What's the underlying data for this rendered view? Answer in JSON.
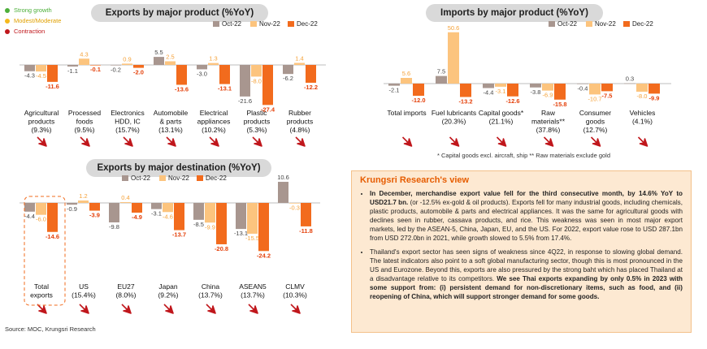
{
  "legend_status": [
    {
      "label": "Strong growth",
      "color": "#4caf3a"
    },
    {
      "label": "Modest/Moderate",
      "color": "#f5b91c"
    },
    {
      "label": "Contraction",
      "color": "#c0171c"
    }
  ],
  "series_colors": {
    "Oct-22": "#a8968f",
    "Nov-22": "#fcc47e",
    "Dec-22": "#f26b1d"
  },
  "arrow_color": "#c0171c",
  "chart_data": [
    {
      "type": "bar",
      "title": "Exports by major product (%YoY)",
      "categories": [
        "Agricultural products (9.3%)",
        "Processed foods (9.5%)",
        "Electronics HDD, IC (15.7%)",
        "Automobile & parts (13.1%)",
        "Electrical appliances (10.2%)",
        "Plastic products (5.3%)",
        "Rubber products (4.8%)"
      ],
      "category_lines": [
        [
          "Agricultural",
          "products",
          "(9.3%)"
        ],
        [
          "Processed",
          "foods",
          "(9.5%)"
        ],
        [
          "Electronics",
          "HDD, IC",
          "(15.7%)"
        ],
        [
          "Automobile",
          "& parts",
          "(13.1%)"
        ],
        [
          "Electrical",
          "appliances",
          "(10.2%)"
        ],
        [
          "Plastic",
          "products",
          "(5.3%)"
        ],
        [
          "Rubber",
          "products",
          "(4.8%)"
        ]
      ],
      "series": [
        {
          "name": "Oct-22",
          "values": [
            -4.3,
            -1.1,
            -0.2,
            5.5,
            -3.0,
            -21.6,
            -6.2
          ]
        },
        {
          "name": "Nov-22",
          "values": [
            -4.5,
            4.3,
            0.9,
            2.5,
            1.3,
            -8.0,
            1.4
          ]
        },
        {
          "name": "Dec-22",
          "values": [
            -11.6,
            -0.1,
            -2.0,
            -13.6,
            -13.1,
            -27.4,
            -12.2
          ]
        }
      ],
      "status": [
        "Contraction",
        "Contraction",
        "Contraction",
        "Contraction",
        "Contraction",
        "Contraction",
        "Contraction"
      ]
    },
    {
      "type": "bar",
      "title": "Imports by major product (%YoY)",
      "categories": [
        "Total imports",
        "Fuel lubricants (20.3%)",
        "Capital goods* (21.1%)",
        "Raw materials** (37.8%)",
        "Consumer goods (12.7%)",
        "Vehicles (4.1%)"
      ],
      "category_lines": [
        [
          "Total imports"
        ],
        [
          "Fuel lubricants",
          "(20.3%)"
        ],
        [
          "Capital goods*",
          "(21.1%)"
        ],
        [
          "Raw",
          "materials**",
          "(37.8%)"
        ],
        [
          "Consumer",
          "goods",
          "(12.7%)"
        ],
        [
          "Vehicles",
          "(4.1%)"
        ]
      ],
      "series": [
        {
          "name": "Oct-22",
          "values": [
            -2.1,
            7.5,
            -4.4,
            -3.8,
            -0.4,
            0.3
          ]
        },
        {
          "name": "Nov-22",
          "values": [
            5.6,
            50.6,
            -3.1,
            -6.9,
            -10.7,
            -8.0
          ]
        },
        {
          "name": "Dec-22",
          "values": [
            -12.0,
            -13.2,
            -12.6,
            -15.8,
            -7.5,
            -9.9
          ]
        }
      ],
      "status": [
        "Contraction",
        "Contraction",
        "Contraction",
        "Contraction",
        "Contraction",
        "Contraction"
      ]
    },
    {
      "type": "bar",
      "title": "Exports by major destination (%YoY)",
      "categories": [
        "Total exports",
        "US (15.4%)",
        "EU27 (8.0%)",
        "Japan (9.2%)",
        "China (13.7%)",
        "ASEAN5 (13.7%)",
        "CLMV (10.3%)"
      ],
      "category_lines": [
        [
          "Total",
          "exports"
        ],
        [
          "US",
          "(15.4%)"
        ],
        [
          "EU27",
          "(8.0%)"
        ],
        [
          "Japan",
          "(9.2%)"
        ],
        [
          "China",
          "(13.7%)"
        ],
        [
          "ASEAN5",
          "(13.7%)"
        ],
        [
          "CLMV",
          "(10.3%)"
        ]
      ],
      "series": [
        {
          "name": "Oct-22",
          "values": [
            -4.4,
            -0.9,
            -9.8,
            -3.1,
            -8.5,
            -13.1,
            10.6
          ]
        },
        {
          "name": "Nov-22",
          "values": [
            -6.0,
            1.2,
            0.4,
            -4.6,
            -9.9,
            -15.5,
            -0.3
          ]
        },
        {
          "name": "Dec-22",
          "values": [
            -14.6,
            -3.9,
            -4.9,
            -13.7,
            -20.8,
            -24.2,
            -11.8
          ]
        }
      ],
      "status": [
        "Contraction",
        "Contraction",
        "Contraction",
        "Contraction",
        "Contraction",
        "Contraction",
        "Contraction"
      ]
    }
  ],
  "imports_footnote": "* Capital goods excl. aircraft, ship     ** Raw materials exclude gold",
  "source": "Source: MOC, Krungsri Research",
  "view": {
    "title": "Krungsri Research's view",
    "p1_bold": "In December, merchandise export value fell for the third consecutive month, by 14.6% YoY to USD21.7 bn.",
    "p1_rest": " (or -12.5% ex-gold & oil products). Exports fell for many industrial goods, including chemicals, plastic products, automobile & parts and electrical appliances. It was the same for agricultural goods with declines seen in rubber, cassava products, and rice. This weakness was seen in most major export markets, led by the ASEAN-5, China, Japan, EU, and the US. For 2022, export value rose to USD 287.1bn from USD 272.0bn in 2021, while growth slowed to 5.5% from 17.4%.",
    "p2_rest": "Thailand's export sector has seen signs of weakness since 4Q22, in response to slowing global demand. The latest indicators also point to a soft global manufacturing sector, though this is most pronounced in the US and Eurozone. Beyond this, exports are also pressured by the strong baht which has placed Thailand at a disadvantage relative to its competitors. ",
    "p2_bold": "We see Thai exports expanding by only 0.5% in 2023 with some support from: (i) persistent demand for non-discretionary items, such as food, and (ii) reopening of China, which will support stronger demand for some goods."
  }
}
